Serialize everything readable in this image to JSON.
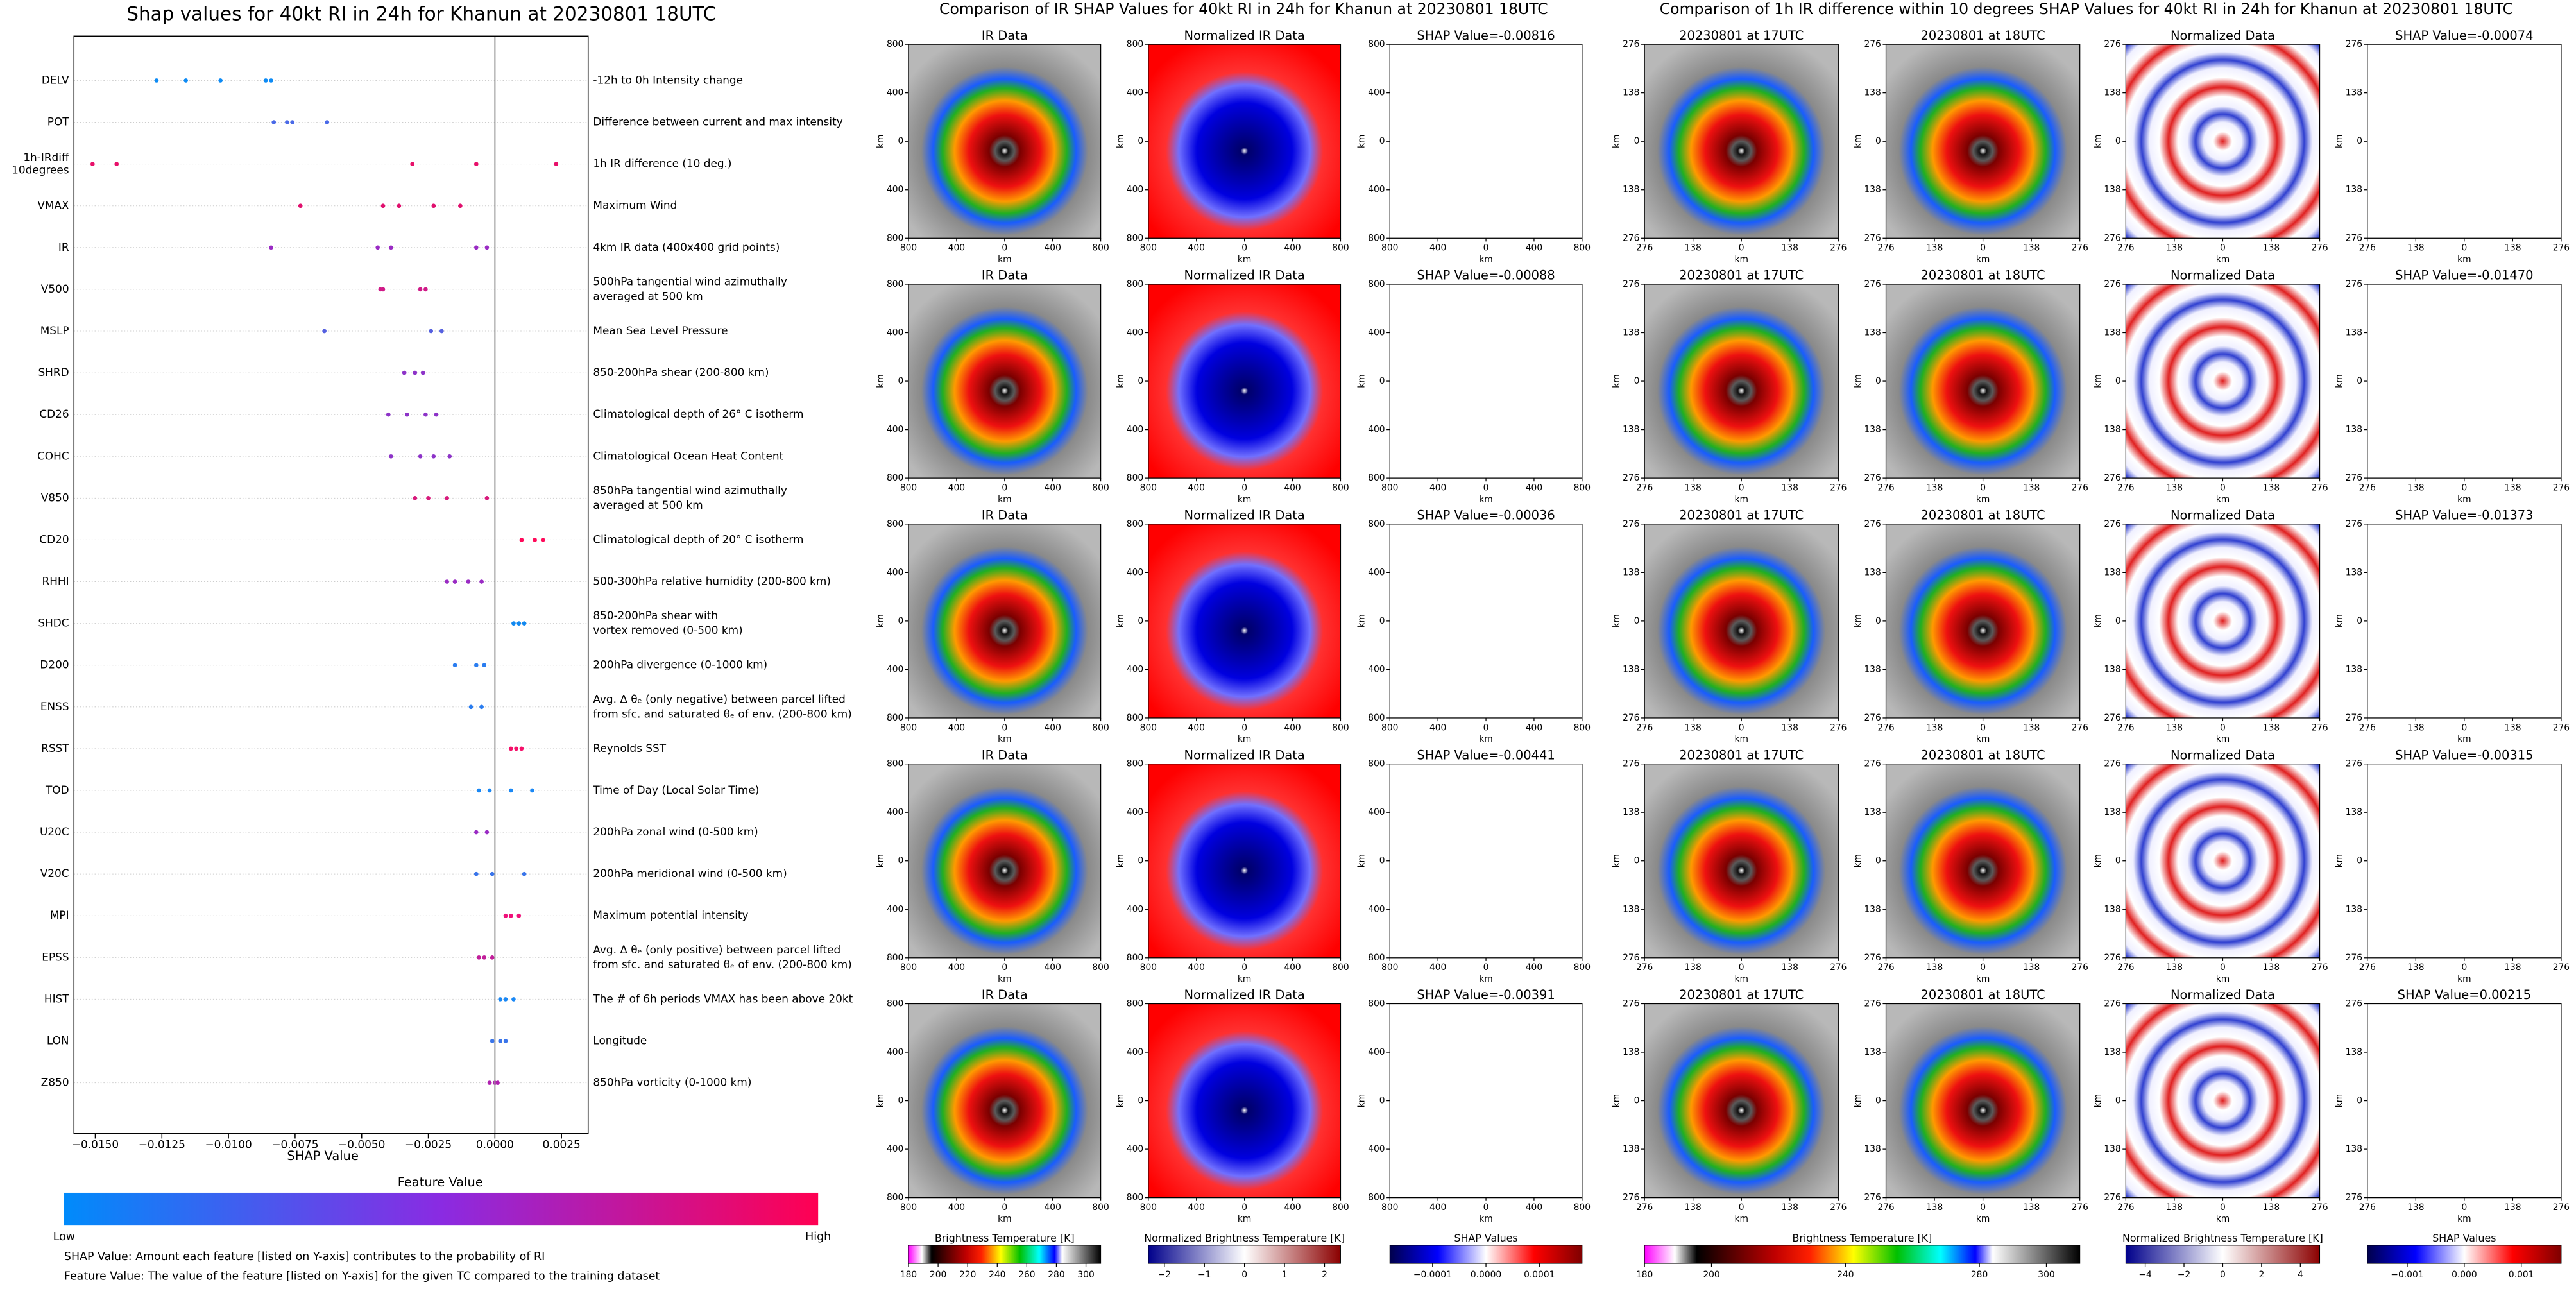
{
  "chart_data": [
    {
      "type": "beeswarm",
      "title": "Shap values for 40kt RI in 24h for Khanun at 20230801 18UTC",
      "xlabel": "SHAP Value",
      "xlim": [
        -0.0158,
        0.0035
      ],
      "xticks": [
        {
          "value": -0.015,
          "label": "−0.0150"
        },
        {
          "value": -0.0125,
          "label": "−0.0125"
        },
        {
          "value": -0.01,
          "label": "−0.0100"
        },
        {
          "value": -0.0075,
          "label": "−0.0075"
        },
        {
          "value": -0.005,
          "label": "−0.0050"
        },
        {
          "value": -0.0025,
          "label": "−0.0025"
        },
        {
          "value": 0,
          "label": "0.0000"
        },
        {
          "value": 0.0025,
          "label": "0.0025"
        }
      ],
      "series": [
        {
          "label": [
            "DELV"
          ],
          "description": [
            "-12h to 0h Intensity change"
          ],
          "color": "#0d8bf5",
          "values": [
            -0.0127,
            -0.0116,
            -0.0103,
            -0.0086,
            -0.0084
          ]
        },
        {
          "label": [
            "POT"
          ],
          "description": [
            "Difference between current and max intensity"
          ],
          "color": "#4a6ae8",
          "values": [
            -0.0083,
            -0.0078,
            -0.0076,
            -0.0063
          ]
        },
        {
          "label": [
            "1h-IRdiff",
            "10degrees"
          ],
          "description": [
            "1h IR difference (10 deg.)"
          ],
          "color": "#e8106a",
          "values": [
            -0.0151,
            -0.0142,
            -0.0031,
            -0.0007,
            0.0023
          ]
        },
        {
          "label": [
            "VMAX"
          ],
          "description": [
            "Maximum Wind"
          ],
          "color": "#e0106e",
          "values": [
            -0.0073,
            -0.0042,
            -0.0036,
            -0.0023,
            -0.0013
          ]
        },
        {
          "label": [
            "IR"
          ],
          "description": [
            "4km IR data (400x400 grid points)"
          ],
          "color": "#9a2bc4",
          "values": [
            -0.0084,
            -0.0044,
            -0.0039,
            -0.0007,
            -0.0003
          ]
        },
        {
          "label": [
            "V500"
          ],
          "description": [
            "500hPa tangential wind azimuthally",
            "averaged at 500 km"
          ],
          "color": "#d01a88",
          "values": [
            -0.0043,
            -0.0042,
            -0.0028,
            -0.0026
          ]
        },
        {
          "label": [
            "MSLP"
          ],
          "description": [
            "Mean Sea Level Pressure"
          ],
          "color": "#5560e0",
          "values": [
            -0.0064,
            -0.0024,
            -0.002
          ]
        },
        {
          "label": [
            "SHRD"
          ],
          "description": [
            "850-200hPa shear (200-800 km)"
          ],
          "color": "#8d33c8",
          "values": [
            -0.0034,
            -0.003,
            -0.0027
          ]
        },
        {
          "label": [
            "CD26"
          ],
          "description": [
            "Climatological depth of 26° C isotherm"
          ],
          "color": "#8d33c8",
          "values": [
            -0.004,
            -0.0033,
            -0.0026,
            -0.0022
          ]
        },
        {
          "label": [
            "COHC"
          ],
          "description": [
            "Climatological Ocean Heat Content"
          ],
          "color": "#8d33c8",
          "values": [
            -0.0039,
            -0.0028,
            -0.0023,
            -0.0017
          ]
        },
        {
          "label": [
            "V850"
          ],
          "description": [
            "850hPa tangential wind azimuthally",
            "averaged at 500 km"
          ],
          "color": "#d81a7c",
          "values": [
            -0.003,
            -0.0025,
            -0.0018,
            -0.0003
          ]
        },
        {
          "label": [
            "CD20"
          ],
          "description": [
            "Climatological depth of 20° C isotherm"
          ],
          "color": "#ff0a5a",
          "values": [
            0.001,
            0.0015,
            0.0018
          ]
        },
        {
          "label": [
            "RHHI"
          ],
          "description": [
            "500-300hPa relative humidity (200-800 km)"
          ],
          "color": "#9a2bc4",
          "values": [
            -0.0018,
            -0.0015,
            -0.001,
            -0.0005
          ]
        },
        {
          "label": [
            "SHDC"
          ],
          "description": [
            "850-200hPa shear with",
            "vortex removed (0-500 km)"
          ],
          "color": "#1188f0",
          "values": [
            0.0007,
            0.0009,
            0.0011
          ]
        },
        {
          "label": [
            "D200"
          ],
          "description": [
            "200hPa divergence (0-1000 km)"
          ],
          "color": "#2a7df0",
          "values": [
            -0.0015,
            -0.0007,
            -0.0004
          ]
        },
        {
          "label": [
            "ENSS"
          ],
          "description": [
            "Avg. Δ θₑ (only negative) between parcel lifted",
            "from sfc. and saturated θₑ of env. (200-800 km)"
          ],
          "color": "#2a7df0",
          "values": [
            -0.0009,
            -0.0005
          ]
        },
        {
          "label": [
            "RSST"
          ],
          "description": [
            "Reynolds SST"
          ],
          "color": "#f5106a",
          "values": [
            0.0006,
            0.0008,
            0.001
          ]
        },
        {
          "label": [
            "TOD"
          ],
          "description": [
            "Time of Day (Local Solar Time)"
          ],
          "color": "#1a88f5",
          "values": [
            -0.0006,
            -0.0002,
            0.0006,
            0.0014
          ]
        },
        {
          "label": [
            "U20C"
          ],
          "description": [
            "200hPa zonal wind (0-500 km)"
          ],
          "color": "#9a2bc4",
          "values": [
            -0.0007,
            -0.0003
          ]
        },
        {
          "label": [
            "V20C"
          ],
          "description": [
            "200hPa meridional wind (0-500 km)"
          ],
          "color": "#3a75ea",
          "values": [
            -0.0007,
            -0.0001,
            0.0011
          ]
        },
        {
          "label": [
            "MPI"
          ],
          "description": [
            "Maximum potential intensity"
          ],
          "color": "#f0107a",
          "values": [
            0.0004,
            0.0006,
            0.0009
          ]
        },
        {
          "label": [
            "EPSS"
          ],
          "description": [
            "Avg. Δ θₑ (only positive) between parcel lifted",
            "from sfc. and saturated θₑ of env. (200-800 km)"
          ],
          "color": "#c21e9a",
          "values": [
            -0.0006,
            -0.0004,
            -0.0001
          ]
        },
        {
          "label": [
            "HIST"
          ],
          "description": [
            "The # of 6h periods VMAX has been above 20kt"
          ],
          "color": "#1a88f5",
          "values": [
            0.0002,
            0.0004,
            0.0007
          ]
        },
        {
          "label": [
            "LON"
          ],
          "description": [
            "Longitude"
          ],
          "color": "#3a75ea",
          "values": [
            -0.0001,
            0.0002,
            0.0004
          ]
        },
        {
          "label": [
            "Z850"
          ],
          "description": [
            "850hPa vorticity (0-1000 km)"
          ],
          "color": "#b020b0",
          "values": [
            -0.0002,
            0,
            0.0001
          ]
        }
      ],
      "colorbar": {
        "title": "Feature Value",
        "low": "Low",
        "high": "High",
        "colors": [
          "#008bfb",
          "#8a2be2",
          "#ff0052"
        ]
      },
      "notes": [
        "SHAP Value: Amount each feature [listed on Y-axis] contributes to the probability of RI",
        "Feature Value: The value of the feature [listed on Y-axis] for the given TC compared to the training dataset"
      ]
    },
    {
      "type": "image-grid",
      "title": "Comparison of IR SHAP Values for 40kt RI in 24h for Khanun at 20230801 18UTC",
      "columns": [
        "ir",
        "bwr-norm",
        "shap"
      ],
      "panels": [
        [
          "IR Data",
          "Normalized IR Data",
          "SHAP Value=-0.00816"
        ],
        [
          "IR Data",
          "Normalized IR Data",
          "SHAP Value=-0.00088"
        ],
        [
          "IR Data",
          "Normalized IR Data",
          "SHAP Value=-0.00036"
        ],
        [
          "IR Data",
          "Normalized IR Data",
          "SHAP Value=-0.00441"
        ],
        [
          "IR Data",
          "Normalized IR Data",
          "SHAP Value=-0.00391"
        ]
      ],
      "xlabel": "km",
      "ylabel": "km",
      "xlim": [
        -800,
        800
      ],
      "ylim": [
        -800,
        800
      ],
      "xticks": [
        {
          "value": -800,
          "label": "800"
        },
        {
          "value": -400,
          "label": "400"
        },
        0,
        400,
        800
      ],
      "yticks": [
        800,
        400,
        0,
        {
          "value": -400,
          "label": "400"
        },
        {
          "value": -800,
          "label": "800"
        }
      ],
      "colorbars": [
        {
          "colormap": "ir",
          "label": "Brightness Temperature [K]",
          "lim": [
            180,
            310
          ],
          "ticks": [
            180,
            200,
            220,
            240,
            260,
            280,
            300
          ]
        },
        {
          "colormap": "bwr-norm",
          "label": "Normalized Brightness Temperature [K]",
          "lim": [
            -2.4,
            2.4
          ],
          "ticks": [
            {
              "value": -2,
              "label": "−2"
            },
            {
              "value": -1,
              "label": "−1"
            },
            0,
            1,
            2
          ]
        },
        {
          "colormap": "shap",
          "label": "SHAP Values",
          "lim": [
            -0.00018,
            0.00018
          ],
          "ticks": [
            {
              "value": -0.0001,
              "label": "−0.0001"
            },
            {
              "value": 0,
              "label": "0.0000"
            },
            0.0001
          ]
        }
      ]
    },
    {
      "type": "image-grid",
      "title": "Comparison of 1h IR difference within 10 degrees SHAP Values for 40kt RI in 24h for Khanun at 20230801 18UTC",
      "columns": [
        "ir",
        "ir",
        "bwr-diff",
        "shap"
      ],
      "panels": [
        [
          "20230801 at 17UTC",
          "20230801 at 18UTC",
          "Normalized Data",
          "SHAP Value=-0.00074"
        ],
        [
          "20230801 at 17UTC",
          "20230801 at 18UTC",
          "Normalized Data",
          "SHAP Value=-0.01470"
        ],
        [
          "20230801 at 17UTC",
          "20230801 at 18UTC",
          "Normalized Data",
          "SHAP Value=-0.01373"
        ],
        [
          "20230801 at 17UTC",
          "20230801 at 18UTC",
          "Normalized Data",
          "SHAP Value=-0.00315"
        ],
        [
          "20230801 at 17UTC",
          "20230801 at 18UTC",
          "Normalized Data",
          "SHAP Value=0.00215"
        ]
      ],
      "xlabel": "km",
      "ylabel": "km",
      "xlim": [
        -276,
        276
      ],
      "ylim": [
        -276,
        276
      ],
      "xticks": [
        {
          "value": -276,
          "label": "276"
        },
        {
          "value": -138,
          "label": "138"
        },
        0,
        138,
        276
      ],
      "yticks": [
        276,
        138,
        0,
        {
          "value": -138,
          "label": "138"
        },
        {
          "value": -276,
          "label": "276"
        }
      ],
      "colorbars": [
        {
          "colormap": "ir",
          "label": "Brightness Temperature [K]",
          "lim": [
            180,
            310
          ],
          "ticks": [
            180,
            200,
            240,
            280,
            300
          ]
        },
        {
          "colormap": "bwr-diff",
          "label": "Normalized Brightness Temperature [K]",
          "lim": [
            -5,
            5
          ],
          "ticks": [
            {
              "value": -4,
              "label": "−4"
            },
            {
              "value": -2,
              "label": "−2"
            },
            0,
            2,
            4
          ]
        },
        {
          "colormap": "shap",
          "label": "SHAP Values",
          "lim": [
            -0.0017,
            0.0017
          ],
          "ticks": [
            {
              "value": -0.001,
              "label": "−0.001"
            },
            {
              "value": 0,
              "label": "0.000"
            },
            0.001
          ]
        }
      ]
    }
  ]
}
